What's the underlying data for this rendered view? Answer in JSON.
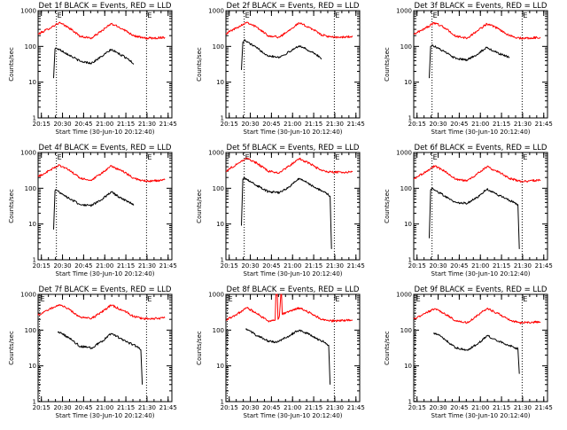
{
  "figure": {
    "background": "#ffffff",
    "line_colors": {
      "events": "#000000",
      "lld": "#ff0000"
    }
  },
  "chart_data": [
    {
      "type": "line",
      "title": "Det 1f BLACK = Events, RED = LLD",
      "xlabel": "Start Time (30-Jun-10 20:12:40)",
      "ylabel": "Counts/sec",
      "x_ticks": [
        "20:15",
        "20:30",
        "20:45",
        "21:00",
        "21:15",
        "21:30",
        "21:45"
      ],
      "xlim_minutes": [
        0,
        95
      ],
      "ylim": [
        1,
        1000
      ],
      "yscale": "log",
      "y_ticks": [
        "1",
        "10",
        "100",
        "1000"
      ],
      "markers": [
        {
          "label": "E",
          "t_minutes": 13
        },
        {
          "label": "E",
          "t_minutes": 77
        }
      ],
      "series": [
        {
          "name": "LLD",
          "color": "#ff0000",
          "t_minutes": [
            0,
            8,
            15,
            22,
            30,
            38,
            45,
            52,
            60,
            68,
            75,
            82,
            90
          ],
          "values": [
            220,
            320,
            460,
            330,
            190,
            170,
            270,
            430,
            310,
            200,
            170,
            170,
            180
          ]
        },
        {
          "name": "Events",
          "color": "#000000",
          "t_minutes": [
            11,
            12,
            13,
            17,
            22,
            30,
            38,
            45,
            52,
            58,
            64,
            68
          ],
          "values": [
            13,
            85,
            90,
            75,
            58,
            38,
            34,
            52,
            82,
            60,
            45,
            32
          ]
        }
      ]
    },
    {
      "type": "line",
      "title": "Det 2f BLACK = Events, RED = LLD",
      "xlabel": "Start Time (30-Jun-10 20:12:40)",
      "ylabel": "Counts/sec",
      "x_ticks": [
        "20:15",
        "20:30",
        "20:45",
        "21:00",
        "21:15",
        "21:30",
        "21:45"
      ],
      "xlim_minutes": [
        0,
        95
      ],
      "ylim": [
        1,
        1000
      ],
      "yscale": "log",
      "y_ticks": [
        "1",
        "10",
        "100",
        "1000"
      ],
      "markers": [
        {
          "label": "E",
          "t_minutes": 13
        },
        {
          "label": "E",
          "t_minutes": 77
        }
      ],
      "series": [
        {
          "name": "LLD",
          "color": "#ff0000",
          "t_minutes": [
            0,
            8,
            15,
            22,
            30,
            38,
            45,
            52,
            60,
            68,
            75,
            82,
            90
          ],
          "values": [
            230,
            340,
            480,
            340,
            200,
            180,
            290,
            450,
            330,
            210,
            180,
            180,
            190
          ]
        },
        {
          "name": "Events",
          "color": "#000000",
          "t_minutes": [
            11,
            12,
            13,
            17,
            22,
            30,
            38,
            45,
            52,
            58,
            64,
            68
          ],
          "values": [
            22,
            130,
            150,
            120,
            90,
            55,
            50,
            70,
            105,
            80,
            60,
            45
          ]
        }
      ]
    },
    {
      "type": "line",
      "title": "Det 3f BLACK = Events, RED = LLD",
      "xlabel": "Start Time (30-Jun-10 20:12:40)",
      "ylabel": "Counts/sec",
      "x_ticks": [
        "20:15",
        "20:30",
        "20:45",
        "21:00",
        "21:15",
        "21:30",
        "21:45"
      ],
      "xlim_minutes": [
        0,
        95
      ],
      "ylim": [
        1,
        1000
      ],
      "yscale": "log",
      "y_ticks": [
        "1",
        "10",
        "100",
        "1000"
      ],
      "markers": [
        {
          "label": "E",
          "t_minutes": 13
        },
        {
          "label": "E",
          "t_minutes": 77
        }
      ],
      "series": [
        {
          "name": "LLD",
          "color": "#ff0000",
          "t_minutes": [
            0,
            8,
            15,
            22,
            30,
            38,
            45,
            52,
            60,
            68,
            75,
            82,
            90
          ],
          "values": [
            220,
            320,
            460,
            330,
            190,
            170,
            270,
            430,
            310,
            200,
            170,
            170,
            180
          ]
        },
        {
          "name": "Events",
          "color": "#000000",
          "t_minutes": [
            11,
            12,
            13,
            17,
            22,
            30,
            38,
            45,
            52,
            58,
            64,
            68
          ],
          "values": [
            13,
            100,
            110,
            90,
            70,
            45,
            42,
            60,
            95,
            70,
            55,
            50
          ]
        }
      ]
    },
    {
      "type": "line",
      "title": "Det 4f BLACK = Events, RED = LLD",
      "xlabel": "Start Time (30-Jun-10 20:12:40)",
      "ylabel": "Counts/sec",
      "x_ticks": [
        "20:15",
        "20:30",
        "20:45",
        "21:00",
        "21:15",
        "21:30",
        "21:45"
      ],
      "xlim_minutes": [
        0,
        95
      ],
      "ylim": [
        1,
        1000
      ],
      "yscale": "log",
      "y_ticks": [
        "1",
        "10",
        "100",
        "1000"
      ],
      "markers": [
        {
          "label": "E",
          "t_minutes": 13
        },
        {
          "label": "E",
          "t_minutes": 77
        }
      ],
      "series": [
        {
          "name": "LLD",
          "color": "#ff0000",
          "t_minutes": [
            0,
            8,
            15,
            22,
            30,
            38,
            45,
            52,
            60,
            68,
            75,
            82,
            90
          ],
          "values": [
            210,
            310,
            450,
            320,
            190,
            165,
            260,
            420,
            300,
            190,
            160,
            160,
            170
          ]
        },
        {
          "name": "Events",
          "color": "#000000",
          "t_minutes": [
            11,
            12,
            13,
            17,
            22,
            30,
            38,
            45,
            52,
            58,
            64,
            68
          ],
          "values": [
            7,
            85,
            90,
            70,
            52,
            35,
            33,
            48,
            78,
            55,
            42,
            35
          ]
        }
      ]
    },
    {
      "type": "line",
      "title": "Det 5f BLACK = Events, RED = LLD",
      "xlabel": "Start Time (30-Jun-10 20:12:40)",
      "ylabel": "Counts/sec",
      "x_ticks": [
        "20:15",
        "20:30",
        "20:45",
        "21:00",
        "21:15",
        "21:30",
        "21:45"
      ],
      "xlim_minutes": [
        0,
        95
      ],
      "ylim": [
        1,
        1000
      ],
      "yscale": "log",
      "y_ticks": [
        "1",
        "10",
        "100",
        "1000"
      ],
      "markers": [
        {
          "label": "E",
          "t_minutes": 13
        },
        {
          "label": "E",
          "t_minutes": 77
        }
      ],
      "series": [
        {
          "name": "LLD",
          "color": "#ff0000",
          "t_minutes": [
            0,
            8,
            15,
            22,
            30,
            38,
            45,
            52,
            60,
            68,
            75,
            82,
            90
          ],
          "values": [
            300,
            480,
            700,
            500,
            300,
            270,
            420,
            680,
            480,
            310,
            280,
            280,
            290
          ]
        },
        {
          "name": "Events",
          "color": "#000000",
          "t_minutes": [
            11,
            12,
            13,
            17,
            22,
            30,
            38,
            45,
            52,
            58,
            64,
            70,
            74,
            75
          ],
          "values": [
            9,
            180,
            200,
            160,
            120,
            80,
            75,
            110,
            190,
            140,
            100,
            80,
            60,
            2
          ]
        }
      ]
    },
    {
      "type": "line",
      "title": "Det 6f BLACK = Events, RED = LLD",
      "xlabel": "Start Time (30-Jun-10 20:12:40)",
      "ylabel": "Counts/sec",
      "x_ticks": [
        "20:15",
        "20:30",
        "20:45",
        "21:00",
        "21:15",
        "21:30",
        "21:45"
      ],
      "xlim_minutes": [
        0,
        95
      ],
      "ylim": [
        1,
        1000
      ],
      "yscale": "log",
      "y_ticks": [
        "1",
        "10",
        "100",
        "1000"
      ],
      "markers": [
        {
          "label": "E",
          "t_minutes": 13
        },
        {
          "label": "E",
          "t_minutes": 77
        }
      ],
      "series": [
        {
          "name": "LLD",
          "color": "#ff0000",
          "t_minutes": [
            0,
            8,
            15,
            22,
            30,
            38,
            45,
            52,
            60,
            68,
            75,
            82,
            90
          ],
          "values": [
            180,
            280,
            420,
            300,
            180,
            160,
            250,
            400,
            290,
            190,
            160,
            160,
            170
          ]
        },
        {
          "name": "Events",
          "color": "#000000",
          "t_minutes": [
            11,
            12,
            13,
            17,
            22,
            30,
            38,
            45,
            52,
            58,
            64,
            70,
            74,
            75
          ],
          "values": [
            4,
            90,
            100,
            80,
            60,
            40,
            38,
            55,
            95,
            70,
            55,
            42,
            35,
            2
          ]
        }
      ]
    },
    {
      "type": "line",
      "title": "Det 7f BLACK = Events, RED = LLD",
      "xlabel": "Start Time (30-Jun-10 20:12:40)",
      "ylabel": "Counts/sec",
      "x_ticks": [
        "20:15",
        "20:30",
        "20:45",
        "21:00",
        "21:15",
        "21:30",
        "21:45"
      ],
      "xlim_minutes": [
        0,
        95
      ],
      "ylim": [
        1,
        1000
      ],
      "yscale": "log",
      "y_ticks": [
        "1",
        "10",
        "100",
        "1000"
      ],
      "markers": [
        {
          "label": "E",
          "t_minutes": 1
        },
        {
          "label": "E",
          "t_minutes": 77
        }
      ],
      "series": [
        {
          "name": "LLD",
          "color": "#ff0000",
          "t_minutes": [
            0,
            8,
            15,
            22,
            30,
            38,
            45,
            52,
            60,
            68,
            75,
            82,
            90
          ],
          "values": [
            260,
            380,
            520,
            380,
            230,
            210,
            320,
            500,
            360,
            240,
            210,
            210,
            220
          ]
        },
        {
          "name": "Events",
          "color": "#000000",
          "t_minutes": [
            14,
            17,
            22,
            30,
            38,
            45,
            52,
            58,
            64,
            70,
            73,
            74
          ],
          "values": [
            85,
            80,
            60,
            35,
            32,
            48,
            80,
            60,
            45,
            35,
            28,
            3
          ]
        }
      ]
    },
    {
      "type": "line",
      "title": "Det 8f BLACK = Events, RED = LLD",
      "xlabel": "Start Time (30-Jun-10 20:12:40)",
      "ylabel": "Counts/sec",
      "x_ticks": [
        "20:15",
        "20:30",
        "20:45",
        "21:00",
        "21:15",
        "21:30",
        "21:45"
      ],
      "xlim_minutes": [
        0,
        95
      ],
      "ylim": [
        1,
        1000
      ],
      "yscale": "log",
      "y_ticks": [
        "1",
        "10",
        "100",
        "1000"
      ],
      "markers": [
        {
          "label": "E",
          "t_minutes": 1
        },
        {
          "label": "E",
          "t_minutes": 77
        }
      ],
      "series": [
        {
          "name": "LLD",
          "color": "#ff0000",
          "t_minutes": [
            0,
            8,
            15,
            22,
            30,
            35,
            35.5,
            36.5,
            37,
            38,
            39,
            39.5,
            40,
            45,
            52,
            60,
            68,
            75,
            82,
            90
          ],
          "values": [
            190,
            280,
            420,
            290,
            180,
            190,
            1000,
            1000,
            200,
            250,
            1000,
            1000,
            280,
            330,
            420,
            300,
            200,
            180,
            185,
            190
          ]
        },
        {
          "name": "Events",
          "color": "#000000",
          "t_minutes": [
            14,
            17,
            22,
            30,
            35,
            40,
            45,
            52,
            58,
            64,
            70,
            73,
            74
          ],
          "values": [
            110,
            95,
            70,
            50,
            45,
            55,
            70,
            100,
            80,
            60,
            45,
            38,
            3
          ]
        }
      ]
    },
    {
      "type": "line",
      "title": "Det 9f BLACK = Events, RED = LLD",
      "xlabel": "Start Time (30-Jun-10 20:12:40)",
      "ylabel": "Counts/sec",
      "x_ticks": [
        "20:15",
        "20:30",
        "20:45",
        "21:00",
        "21:15",
        "21:30",
        "21:45"
      ],
      "xlim_minutes": [
        0,
        95
      ],
      "ylim": [
        1,
        1000
      ],
      "yscale": "log",
      "y_ticks": [
        "1",
        "10",
        "100",
        "1000"
      ],
      "markers": [
        {
          "label": "E",
          "t_minutes": 1
        },
        {
          "label": "E",
          "t_minutes": 77
        }
      ],
      "series": [
        {
          "name": "LLD",
          "color": "#ff0000",
          "t_minutes": [
            0,
            8,
            15,
            22,
            30,
            38,
            45,
            52,
            60,
            68,
            75,
            82,
            90
          ],
          "values": [
            200,
            290,
            400,
            290,
            180,
            160,
            250,
            400,
            290,
            190,
            160,
            165,
            170
          ]
        },
        {
          "name": "Events",
          "color": "#000000",
          "t_minutes": [
            14,
            17,
            22,
            30,
            38,
            45,
            52,
            58,
            64,
            70,
            74,
            75
          ],
          "values": [
            80,
            75,
            55,
            32,
            28,
            40,
            70,
            55,
            42,
            35,
            30,
            6
          ]
        }
      ]
    }
  ]
}
